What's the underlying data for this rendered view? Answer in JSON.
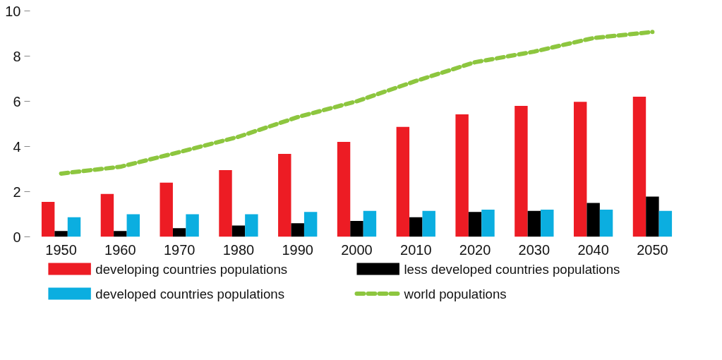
{
  "chart_data": {
    "type": "bar",
    "categories": [
      "1950",
      "1960",
      "1970",
      "1980",
      "1990",
      "2000",
      "2010",
      "2020",
      "2030",
      "2040",
      "2050"
    ],
    "series": [
      {
        "name": "developing countries populations",
        "color": "#ed1c24",
        "values": [
          1.55,
          1.9,
          2.4,
          2.95,
          3.67,
          4.2,
          4.87,
          5.42,
          5.8,
          5.98,
          6.2
        ]
      },
      {
        "name": "less developed countries populations",
        "color": "#000000",
        "values": [
          0.26,
          0.26,
          0.38,
          0.5,
          0.6,
          0.7,
          0.87,
          1.1,
          1.15,
          1.5,
          1.78
        ]
      },
      {
        "name": "developed countries populations",
        "color": "#0baee0",
        "values": [
          0.87,
          1.0,
          1.0,
          1.0,
          1.1,
          1.15,
          1.15,
          1.2,
          1.2,
          1.2,
          1.15
        ]
      },
      {
        "name": "world populations",
        "color": "#8dc63f",
        "type": "line",
        "line_style": "dashed",
        "values": [
          2.8,
          3.1,
          3.75,
          4.43,
          5.3,
          6.0,
          6.9,
          7.73,
          8.2,
          8.8,
          9.07
        ]
      }
    ],
    "ylim": [
      0,
      10
    ],
    "yticks": [
      0,
      2,
      4,
      6,
      8,
      10
    ],
    "grid": false,
    "legend": "bottom"
  }
}
